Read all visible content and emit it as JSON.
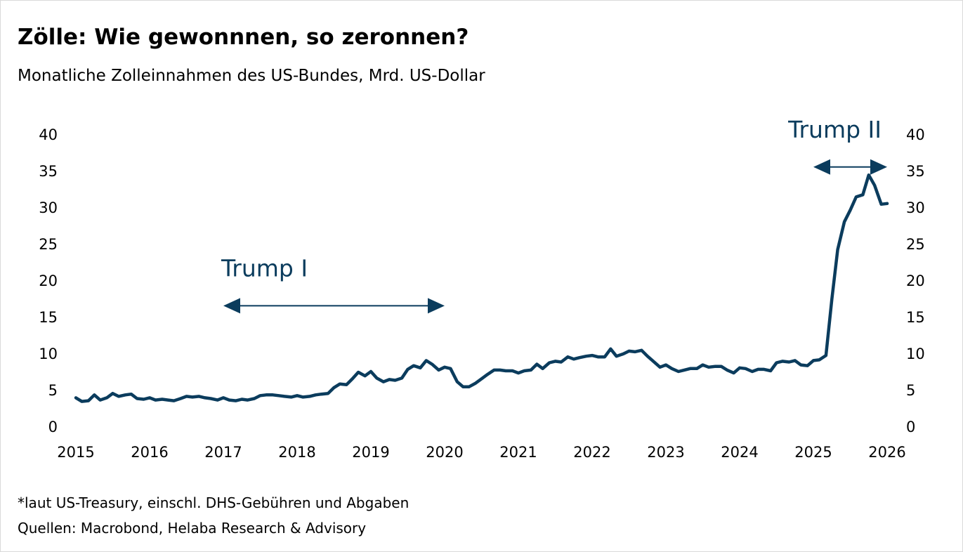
{
  "title": "Zölle: Wie gewonnnen, so zeronnen?",
  "subtitle": "Monatliche Zolleinnahmen des US-Bundes, Mrd. US-Dollar",
  "footnotes": [
    "*laut US-Treasury, einschl. DHS-Gebühren und Abgaben",
    "Quellen: Macrobond, Helaba Research & Advisory"
  ],
  "colors": {
    "line": "#0b3c5d",
    "annotation": "#0b3c5d",
    "text": "#000000"
  },
  "chart_data": {
    "type": "line",
    "title": "Zölle: Wie gewonnnen, so zeronnen?",
    "xlabel": "",
    "ylabel": "",
    "ylim": [
      0,
      40
    ],
    "xlim": [
      2015,
      2026
    ],
    "y_ticks": [
      "0",
      "5",
      "10",
      "15",
      "20",
      "25",
      "30",
      "35",
      "40"
    ],
    "x_ticks": [
      "2015",
      "2016",
      "2017",
      "2018",
      "2019",
      "2020",
      "2021",
      "2022",
      "2023",
      "2024",
      "2025",
      "2026"
    ],
    "grid": false,
    "legend": "none",
    "annotations": [
      {
        "label": "Trump I",
        "from": 2017.0,
        "to": 2020.0,
        "y": 16.5
      },
      {
        "label": "Trump II",
        "from": 2025.0,
        "to": 2026.0,
        "y": 35.5
      }
    ],
    "series": [
      {
        "name": "",
        "points": [
          [
            2015.0,
            3.9
          ],
          [
            2015.08,
            3.4
          ],
          [
            2015.17,
            3.5
          ],
          [
            2015.25,
            4.3
          ],
          [
            2015.33,
            3.6
          ],
          [
            2015.42,
            3.9
          ],
          [
            2015.5,
            4.5
          ],
          [
            2015.58,
            4.1
          ],
          [
            2015.67,
            4.3
          ],
          [
            2015.75,
            4.4
          ],
          [
            2015.83,
            3.8
          ],
          [
            2015.92,
            3.7
          ],
          [
            2016.0,
            3.9
          ],
          [
            2016.08,
            3.6
          ],
          [
            2016.17,
            3.7
          ],
          [
            2016.25,
            3.6
          ],
          [
            2016.33,
            3.5
          ],
          [
            2016.42,
            3.8
          ],
          [
            2016.5,
            4.1
          ],
          [
            2016.58,
            4.0
          ],
          [
            2016.67,
            4.1
          ],
          [
            2016.75,
            3.9
          ],
          [
            2016.83,
            3.8
          ],
          [
            2016.92,
            3.6
          ],
          [
            2017.0,
            3.9
          ],
          [
            2017.08,
            3.6
          ],
          [
            2017.17,
            3.5
          ],
          [
            2017.25,
            3.7
          ],
          [
            2017.33,
            3.6
          ],
          [
            2017.42,
            3.8
          ],
          [
            2017.5,
            4.2
          ],
          [
            2017.58,
            4.3
          ],
          [
            2017.67,
            4.3
          ],
          [
            2017.75,
            4.2
          ],
          [
            2017.83,
            4.1
          ],
          [
            2017.92,
            4.0
          ],
          [
            2018.0,
            4.2
          ],
          [
            2018.08,
            4.0
          ],
          [
            2018.17,
            4.1
          ],
          [
            2018.25,
            4.3
          ],
          [
            2018.33,
            4.4
          ],
          [
            2018.42,
            4.5
          ],
          [
            2018.5,
            5.3
          ],
          [
            2018.58,
            5.8
          ],
          [
            2018.67,
            5.7
          ],
          [
            2018.75,
            6.5
          ],
          [
            2018.83,
            7.4
          ],
          [
            2018.92,
            6.9
          ],
          [
            2019.0,
            7.5
          ],
          [
            2019.08,
            6.6
          ],
          [
            2019.17,
            6.1
          ],
          [
            2019.25,
            6.4
          ],
          [
            2019.33,
            6.3
          ],
          [
            2019.42,
            6.6
          ],
          [
            2019.5,
            7.8
          ],
          [
            2019.58,
            8.3
          ],
          [
            2019.67,
            8.0
          ],
          [
            2019.75,
            9.0
          ],
          [
            2019.83,
            8.5
          ],
          [
            2019.92,
            7.7
          ],
          [
            2020.0,
            8.1
          ],
          [
            2020.08,
            7.9
          ],
          [
            2020.17,
            6.1
          ],
          [
            2020.25,
            5.4
          ],
          [
            2020.33,
            5.4
          ],
          [
            2020.42,
            5.9
          ],
          [
            2020.5,
            6.5
          ],
          [
            2020.58,
            7.1
          ],
          [
            2020.67,
            7.7
          ],
          [
            2020.75,
            7.7
          ],
          [
            2020.83,
            7.6
          ],
          [
            2020.92,
            7.6
          ],
          [
            2021.0,
            7.3
          ],
          [
            2021.08,
            7.6
          ],
          [
            2021.17,
            7.7
          ],
          [
            2021.25,
            8.5
          ],
          [
            2021.33,
            7.9
          ],
          [
            2021.42,
            8.7
          ],
          [
            2021.5,
            8.9
          ],
          [
            2021.58,
            8.8
          ],
          [
            2021.67,
            9.5
          ],
          [
            2021.75,
            9.2
          ],
          [
            2021.83,
            9.4
          ],
          [
            2021.92,
            9.6
          ],
          [
            2022.0,
            9.7
          ],
          [
            2022.08,
            9.5
          ],
          [
            2022.17,
            9.5
          ],
          [
            2022.25,
            10.6
          ],
          [
            2022.33,
            9.6
          ],
          [
            2022.42,
            9.9
          ],
          [
            2022.5,
            10.3
          ],
          [
            2022.58,
            10.2
          ],
          [
            2022.67,
            10.4
          ],
          [
            2022.75,
            9.6
          ],
          [
            2022.83,
            8.9
          ],
          [
            2022.92,
            8.1
          ],
          [
            2023.0,
            8.4
          ],
          [
            2023.08,
            7.9
          ],
          [
            2023.17,
            7.5
          ],
          [
            2023.25,
            7.7
          ],
          [
            2023.33,
            7.9
          ],
          [
            2023.42,
            7.9
          ],
          [
            2023.5,
            8.4
          ],
          [
            2023.58,
            8.1
          ],
          [
            2023.67,
            8.2
          ],
          [
            2023.75,
            8.2
          ],
          [
            2023.83,
            7.7
          ],
          [
            2023.92,
            7.3
          ],
          [
            2024.0,
            8.0
          ],
          [
            2024.08,
            7.9
          ],
          [
            2024.17,
            7.5
          ],
          [
            2024.25,
            7.8
          ],
          [
            2024.33,
            7.8
          ],
          [
            2024.42,
            7.6
          ],
          [
            2024.5,
            8.7
          ],
          [
            2024.58,
            8.9
          ],
          [
            2024.67,
            8.8
          ],
          [
            2024.75,
            9.0
          ],
          [
            2024.83,
            8.4
          ],
          [
            2024.92,
            8.3
          ],
          [
            2025.0,
            9.0
          ],
          [
            2025.08,
            9.1
          ],
          [
            2025.17,
            9.7
          ],
          [
            2025.25,
            17.4
          ],
          [
            2025.33,
            24.2
          ],
          [
            2025.42,
            28.0
          ],
          [
            2025.5,
            29.6
          ],
          [
            2025.58,
            31.4
          ],
          [
            2025.67,
            31.7
          ],
          [
            2025.75,
            34.4
          ],
          [
            2025.83,
            33.0
          ],
          [
            2025.92,
            30.4
          ],
          [
            2026.0,
            30.5
          ]
        ]
      }
    ]
  }
}
